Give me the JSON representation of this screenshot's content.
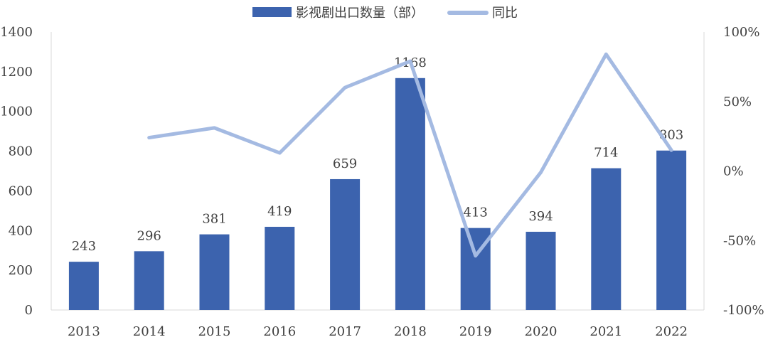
{
  "chart_data": {
    "type": "bar",
    "categories": [
      "2013",
      "2014",
      "2015",
      "2016",
      "2017",
      "2018",
      "2019",
      "2020",
      "2021",
      "2022"
    ],
    "series": [
      {
        "name": "影视剧出口数量（部）",
        "type": "bar",
        "axis": "left",
        "values": [
          243,
          296,
          381,
          419,
          659,
          1168,
          413,
          394,
          714,
          803
        ],
        "color": "#3C63AE"
      },
      {
        "name": "同比",
        "type": "line",
        "axis": "right",
        "values": [
          null,
          0.24,
          0.31,
          0.13,
          0.6,
          0.79,
          -0.61,
          -0.01,
          0.84,
          0.15
        ],
        "color": "#A4BAE2"
      }
    ],
    "y_left": {
      "min": 0,
      "max": 1400,
      "step": 200,
      "ticks": [
        "0",
        "200",
        "400",
        "600",
        "800",
        "1000",
        "1200",
        "1400"
      ]
    },
    "y_right": {
      "min": -1,
      "max": 1,
      "step": 0.5,
      "ticks": [
        "-100%",
        "-50%",
        "0%",
        "50%",
        "100%"
      ]
    },
    "data_labels": [
      "243",
      "296",
      "381",
      "419",
      "659",
      "1168",
      "413",
      "394",
      "714",
      "803"
    ],
    "legend": {
      "position": "top",
      "items": [
        "影视剧出口数量（部）",
        "同比"
      ]
    },
    "grid": false
  }
}
